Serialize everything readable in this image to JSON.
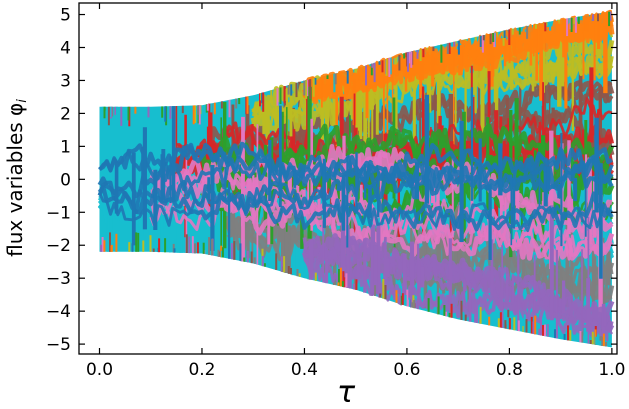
{
  "chart_data": {
    "type": "line",
    "title": "",
    "xlabel": "τ",
    "ylabel": "flux variables φ",
    "ylabel_subscript": "i",
    "xlim": [
      -0.04,
      1.01
    ],
    "ylim": [
      -5.3,
      5.35
    ],
    "xticks": [
      0.0,
      0.2,
      0.4,
      0.6,
      0.8,
      1.0
    ],
    "xtick_labels": [
      "0.0",
      "0.2",
      "0.4",
      "0.6",
      "0.8",
      "1.0"
    ],
    "yticks": [
      -5,
      -4,
      -3,
      -2,
      -1,
      0,
      1,
      2,
      3,
      4,
      5
    ],
    "ytick_labels": [
      "−5",
      "−4",
      "−3",
      "−2",
      "−1",
      "0",
      "1",
      "2",
      "3",
      "4",
      "5"
    ],
    "grid": false,
    "legend": "none",
    "envelope": {
      "x": [
        0.0,
        0.1,
        0.2,
        0.3,
        0.4,
        0.5,
        0.6,
        0.7,
        0.8,
        0.9,
        1.0
      ],
      "upper": [
        2.2,
        2.2,
        2.25,
        2.55,
        3.0,
        3.35,
        3.85,
        4.2,
        4.55,
        4.85,
        5.1
      ],
      "lower": [
        -2.2,
        -2.2,
        -2.25,
        -2.55,
        -3.0,
        -3.35,
        -3.85,
        -4.25,
        -4.55,
        -4.85,
        -5.1
      ]
    },
    "series": [
      {
        "color": "#17becf",
        "center": -1.8,
        "band": 0.55,
        "start": 0.0,
        "end": 1.0
      },
      {
        "color": "#8c564b",
        "center": 1.9,
        "band": 0.9,
        "start": 0.2,
        "end": 1.0
      },
      {
        "color": "#7f7f7f",
        "center": -2.9,
        "band": 0.8,
        "start": 0.25,
        "end": 1.0
      },
      {
        "color": "#bcbd22",
        "center": 3.9,
        "band": 0.5,
        "start": 0.3,
        "end": 1.0
      },
      {
        "color": "#ff7f0e",
        "center": 4.6,
        "band": 0.35,
        "start": 0.4,
        "end": 1.0
      },
      {
        "color": "#d62728",
        "center": 1.2,
        "band": 1.0,
        "start": 0.15,
        "end": 1.0
      },
      {
        "color": "#2ca02c",
        "center": 0.2,
        "band": 1.2,
        "start": 0.2,
        "end": 1.0
      },
      {
        "color": "#e377c2",
        "center": -0.9,
        "band": 1.3,
        "start": 0.1,
        "end": 1.0
      },
      {
        "color": "#9467bd",
        "center": -4.0,
        "band": 0.6,
        "start": 0.4,
        "end": 1.0
      },
      {
        "color": "#1f77b4",
        "center": -0.3,
        "band": 1.0,
        "start": 0.0,
        "end": 1.0
      }
    ],
    "colors": {
      "cyan": "#17becf",
      "brown": "#8c564b",
      "gray": "#7f7f7f",
      "olive": "#bcbd22",
      "orange": "#ff7f0e",
      "red": "#d62728",
      "green": "#2ca02c",
      "pink": "#e377c2",
      "purple": "#9467bd",
      "blue": "#1f77b4"
    }
  }
}
